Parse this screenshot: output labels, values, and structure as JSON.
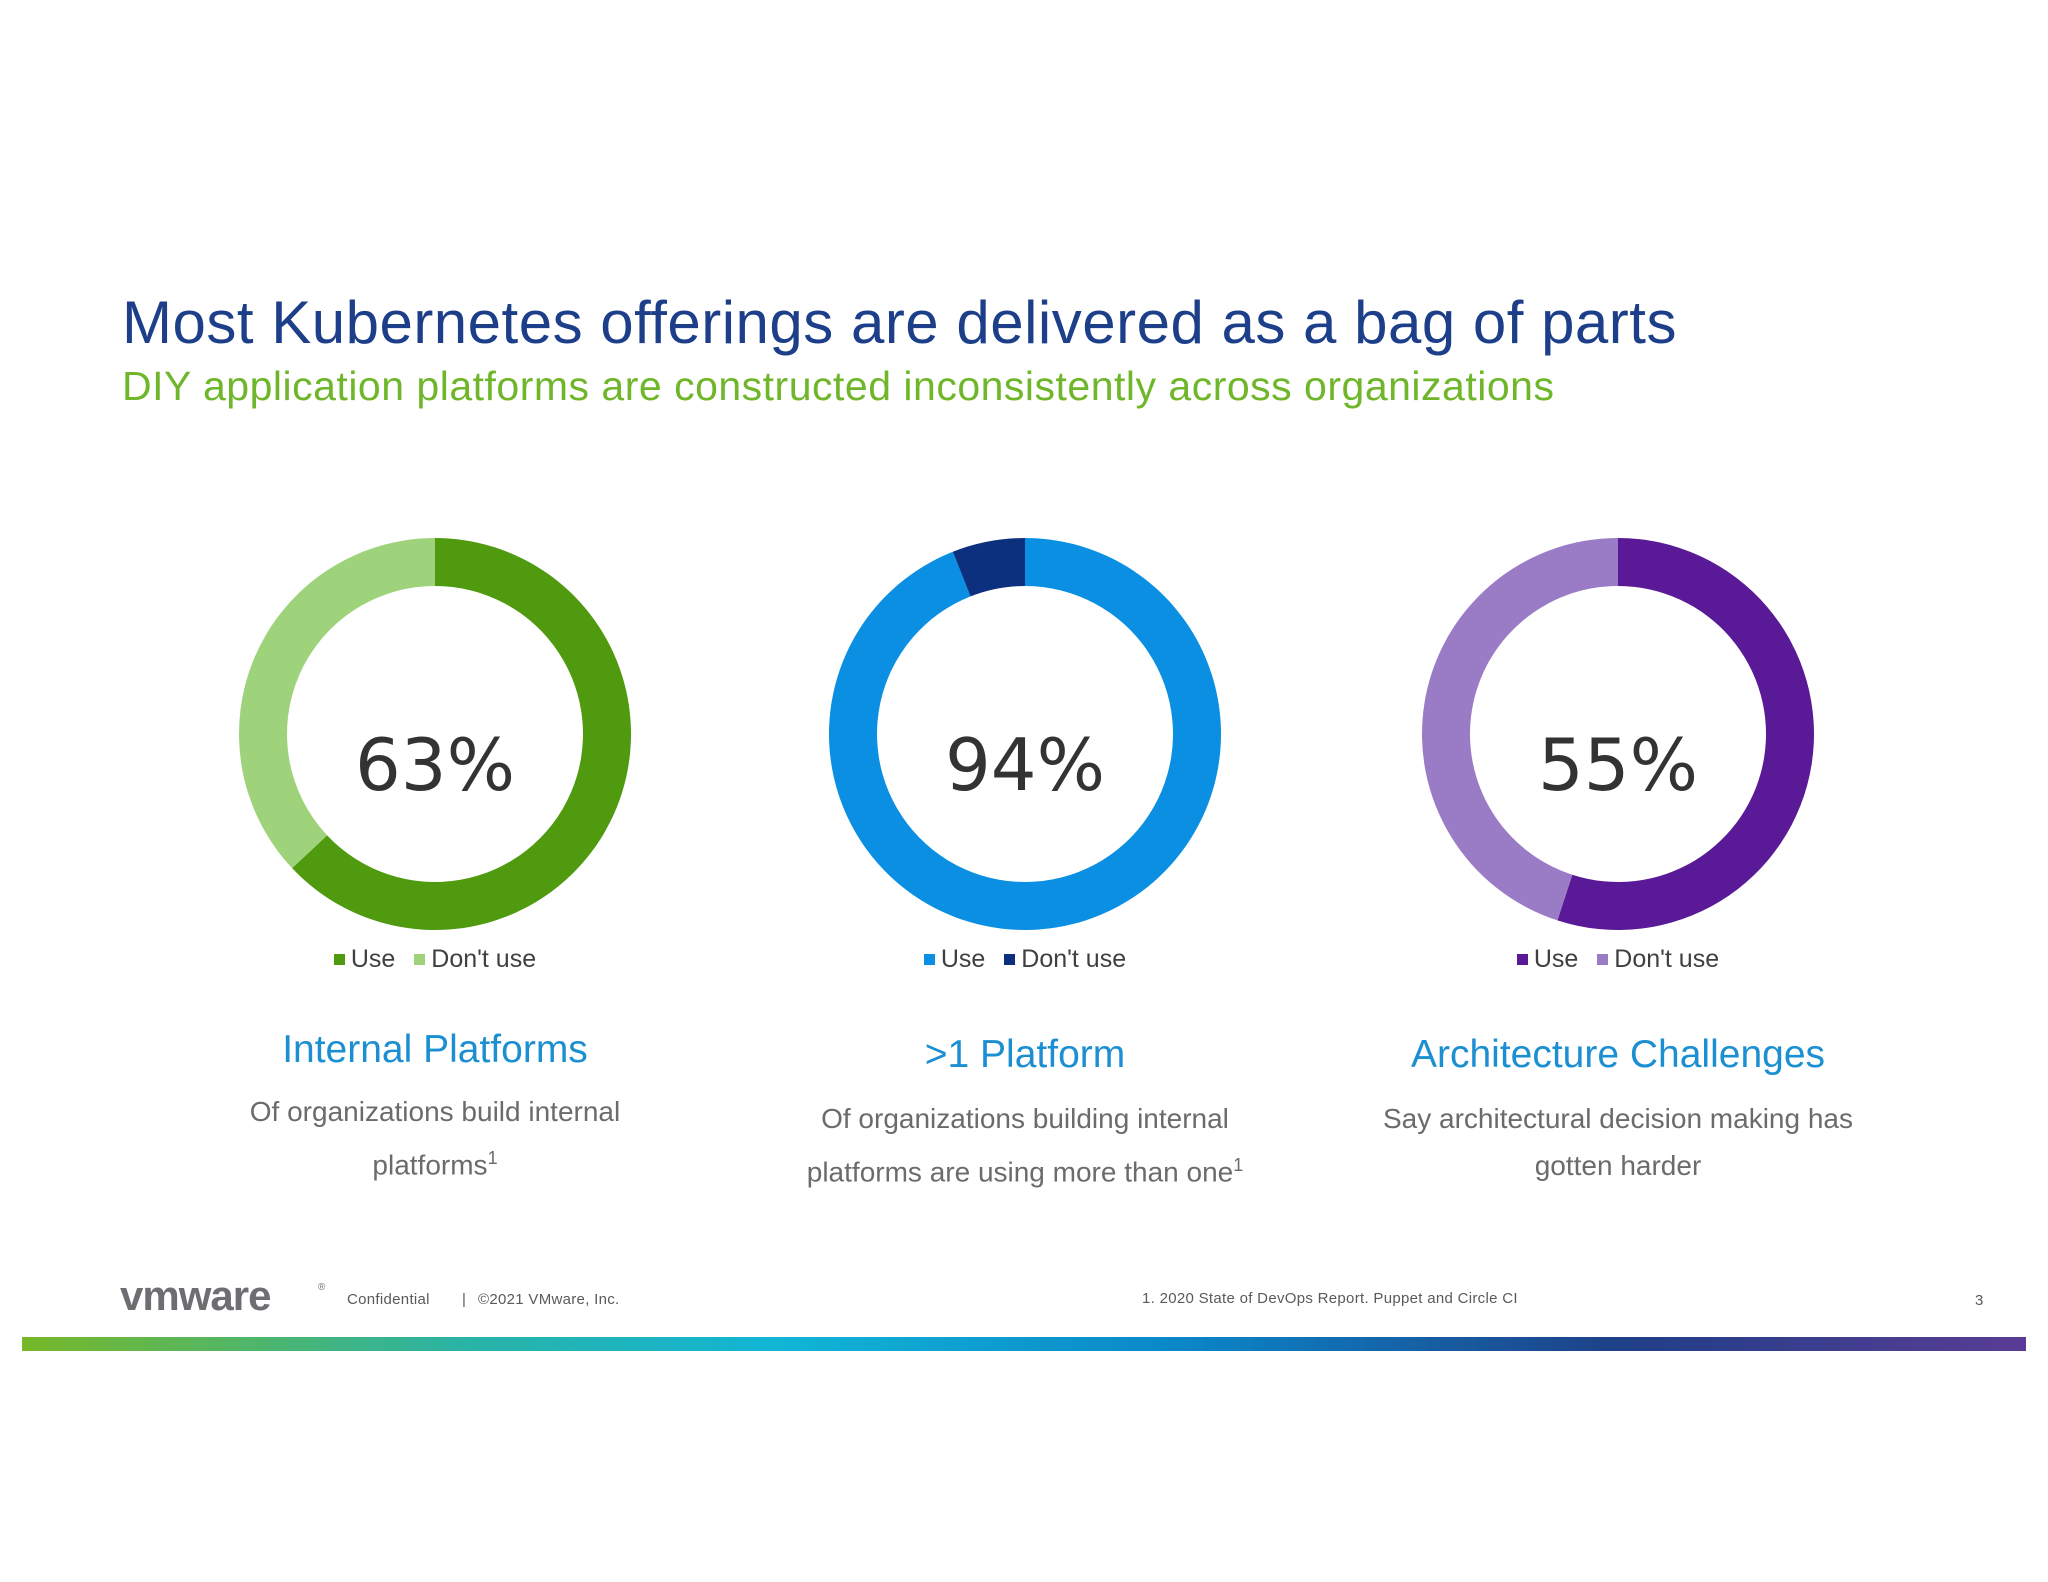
{
  "slide": {
    "title": "Most Kubernetes offerings are delivered as a bag of parts",
    "subtitle": "DIY application platforms are constructed inconsistently across organizations",
    "page_number": "3"
  },
  "footer": {
    "logo_text": "vmware",
    "logo_mark": "®",
    "confidential": "Confidential",
    "separator": "|",
    "copyright": "©2021 VMware, Inc.",
    "footnote": "1. 2020 State of DevOps Report. Puppet and Circle CI"
  },
  "colors": {
    "title": "#1d3f8a",
    "subtitle": "#6fb62a",
    "heading": "#1b8fd1"
  },
  "chart_data": [
    {
      "type": "pie",
      "donut": true,
      "center_label": "63%",
      "categories": [
        "Use",
        "Don't use"
      ],
      "values": [
        63,
        37
      ],
      "colors": [
        "#4f9a0e",
        "#9ed37b"
      ],
      "legend": "bottom",
      "heading": "Internal Platforms",
      "description": "Of organizations build internal platforms",
      "footnote_marker": "1"
    },
    {
      "type": "pie",
      "donut": true,
      "center_label": "94%",
      "categories": [
        "Use",
        "Don't use"
      ],
      "values": [
        94,
        6
      ],
      "colors": [
        "#0a8fe2",
        "#0c2f7e"
      ],
      "legend": "bottom",
      "heading": ">1 Platform",
      "description": "Of organizations building internal platforms are using more than one",
      "footnote_marker": "1"
    },
    {
      "type": "pie",
      "donut": true,
      "center_label": "55%",
      "categories": [
        "Use",
        "Don't use"
      ],
      "values": [
        55,
        45
      ],
      "colors": [
        "#5a1a97",
        "#9a7cc6"
      ],
      "legend": "bottom",
      "heading": "Architecture Challenges",
      "description": "Say architectural decision making has gotten harder",
      "footnote_marker": ""
    }
  ]
}
